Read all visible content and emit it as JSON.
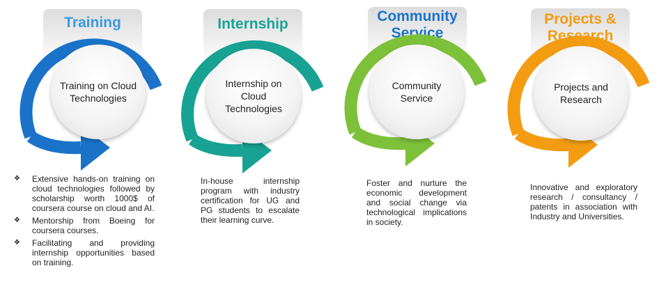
{
  "columns": [
    {
      "title": "Training",
      "color": "#1a73c9",
      "title_color": "#3b9be0",
      "circle_text": "Training on Cloud Technologies",
      "bullets": [
        "Extensive hands-on training on cloud technologies followed by scholarship worth 1000$ of coursera course on cloud and AI.",
        "Mentorship from Boeing for coursera courses.",
        "Facilitating and providing internship opportunities based on training."
      ]
    },
    {
      "title": "Internship",
      "color": "#17a293",
      "title_color": "#19a394",
      "circle_text": "Internship on Cloud Technologies",
      "description": "In-house internship program with industry certification for UG and PG students to escalate their learning curve."
    },
    {
      "title": "Community Service",
      "color": "#7dc03a",
      "title_color": "#1a73c9",
      "circle_text": "Community Service",
      "description": "Foster and nurture the economic development and social change via technological implications in society."
    },
    {
      "title": "Projects & Research",
      "color": "#f39c12",
      "title_color": "#f39c12",
      "circle_text": "Projects and Research",
      "description": "Innovative and exploratory research / consultancy / patents in association with Industry and Universities."
    }
  ]
}
